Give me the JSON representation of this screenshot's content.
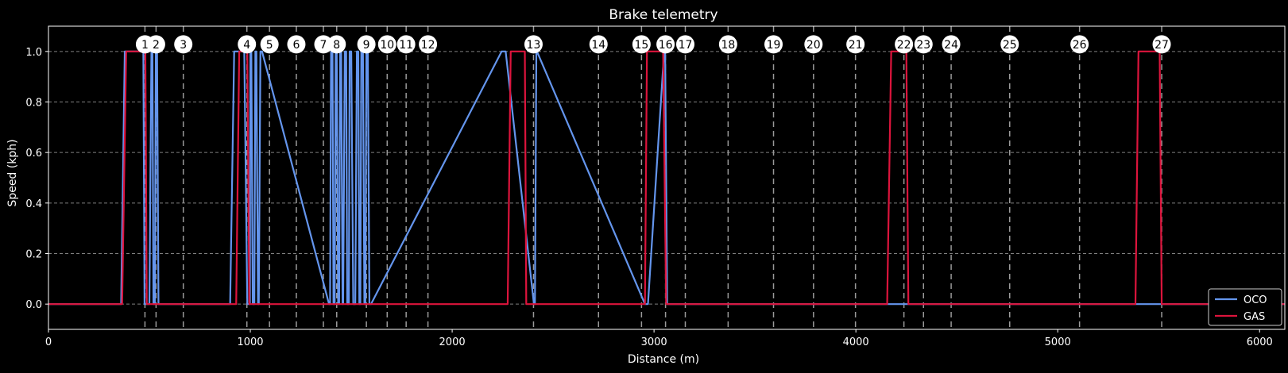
{
  "chart_data": {
    "type": "line",
    "title": "Brake telemetry",
    "xlabel": "Distance (m)",
    "ylabel": "Speed (kph)",
    "xlim": [
      0,
      6125
    ],
    "ylim": [
      -0.1,
      1.1
    ],
    "x_ticks": [
      0,
      1000,
      2000,
      3000,
      4000,
      5000,
      6000
    ],
    "x_tick_labels": [
      "0",
      "1000",
      "2000",
      "3000",
      "4000",
      "5000",
      "6000"
    ],
    "y_ticks": [
      0.0,
      0.2,
      0.4,
      0.6,
      0.8,
      1.0
    ],
    "y_tick_labels": [
      "0.0",
      "0.2",
      "0.4",
      "0.6",
      "0.8",
      "1.0"
    ],
    "grid": true,
    "legend_position": "bottom-right",
    "corners": [
      {
        "label": "1",
        "x": 478
      },
      {
        "label": "2",
        "x": 533
      },
      {
        "label": "3",
        "x": 668
      },
      {
        "label": "4",
        "x": 983
      },
      {
        "label": "5",
        "x": 1095
      },
      {
        "label": "6",
        "x": 1228
      },
      {
        "label": "7",
        "x": 1362
      },
      {
        "label": "8",
        "x": 1428
      },
      {
        "label": "9",
        "x": 1575
      },
      {
        "label": "10",
        "x": 1678
      },
      {
        "label": "11",
        "x": 1772
      },
      {
        "label": "12",
        "x": 1880
      },
      {
        "label": "13",
        "x": 2403
      },
      {
        "label": "14",
        "x": 2725
      },
      {
        "label": "15",
        "x": 2938
      },
      {
        "label": "16",
        "x": 3057
      },
      {
        "label": "17",
        "x": 3155
      },
      {
        "label": "18",
        "x": 3367
      },
      {
        "label": "19",
        "x": 3592
      },
      {
        "label": "20",
        "x": 3790
      },
      {
        "label": "21",
        "x": 3998
      },
      {
        "label": "22",
        "x": 4238
      },
      {
        "label": "23",
        "x": 4335
      },
      {
        "label": "24",
        "x": 4472
      },
      {
        "label": "25",
        "x": 4762
      },
      {
        "label": "26",
        "x": 5108
      },
      {
        "label": "27",
        "x": 5515
      }
    ],
    "series": [
      {
        "name": "OCO",
        "color": "#6495ed",
        "x": [
          0,
          360,
          378,
          470,
          476,
          500,
          510,
          515,
          520,
          527,
          532,
          538,
          545,
          900,
          920,
          970,
          985,
          998,
          1000,
          1005,
          1012,
          1020,
          1025,
          1030,
          1038,
          1042,
          1050,
          1058,
          1390,
          1395,
          1400,
          1407,
          1412,
          1418,
          1423,
          1428,
          1435,
          1440,
          1445,
          1450,
          1457,
          1460,
          1468,
          1475,
          1480,
          1488,
          1492,
          1500,
          1510,
          1520,
          1528,
          1535,
          1540,
          1545,
          1550,
          1558,
          1565,
          1570,
          1575,
          1582,
          1590,
          1598,
          2245,
          2265,
          2405,
          2410,
          2417,
          2420,
          2955,
          2970,
          3050,
          3055,
          3065,
          3070,
          6125
        ],
        "values": [
          0,
          0,
          1,
          1,
          0,
          0,
          1,
          1,
          0,
          0,
          1,
          1,
          0,
          0,
          1,
          1,
          0,
          0,
          1,
          1,
          0,
          0,
          1,
          1,
          0,
          0,
          1,
          1,
          0,
          0,
          1,
          1,
          0,
          0,
          1,
          1,
          0,
          0,
          1,
          1,
          0,
          0,
          1,
          1,
          0,
          0,
          1,
          1,
          0,
          0,
          1,
          1,
          0,
          0,
          1,
          1,
          0,
          0,
          1,
          1,
          0,
          0,
          1,
          1,
          0,
          0,
          1,
          1,
          0,
          0,
          1,
          1,
          0,
          0,
          0
        ]
      },
      {
        "name": "GAS",
        "color": "#dc143c",
        "x": [
          0,
          365,
          385,
          480,
          487,
          930,
          945,
          985,
          995,
          2275,
          2290,
          2360,
          2367,
          2955,
          2965,
          2995,
          3015,
          3045,
          3060,
          4155,
          4175,
          4250,
          4260,
          5385,
          5400,
          5505,
          5515,
          6125
        ],
        "values": [
          0,
          0,
          1,
          1,
          0,
          0,
          1,
          1,
          0,
          0,
          1,
          1,
          0,
          0,
          1,
          1,
          1,
          1,
          0,
          0,
          1,
          1,
          0,
          0,
          1,
          1,
          0,
          0
        ]
      }
    ]
  }
}
